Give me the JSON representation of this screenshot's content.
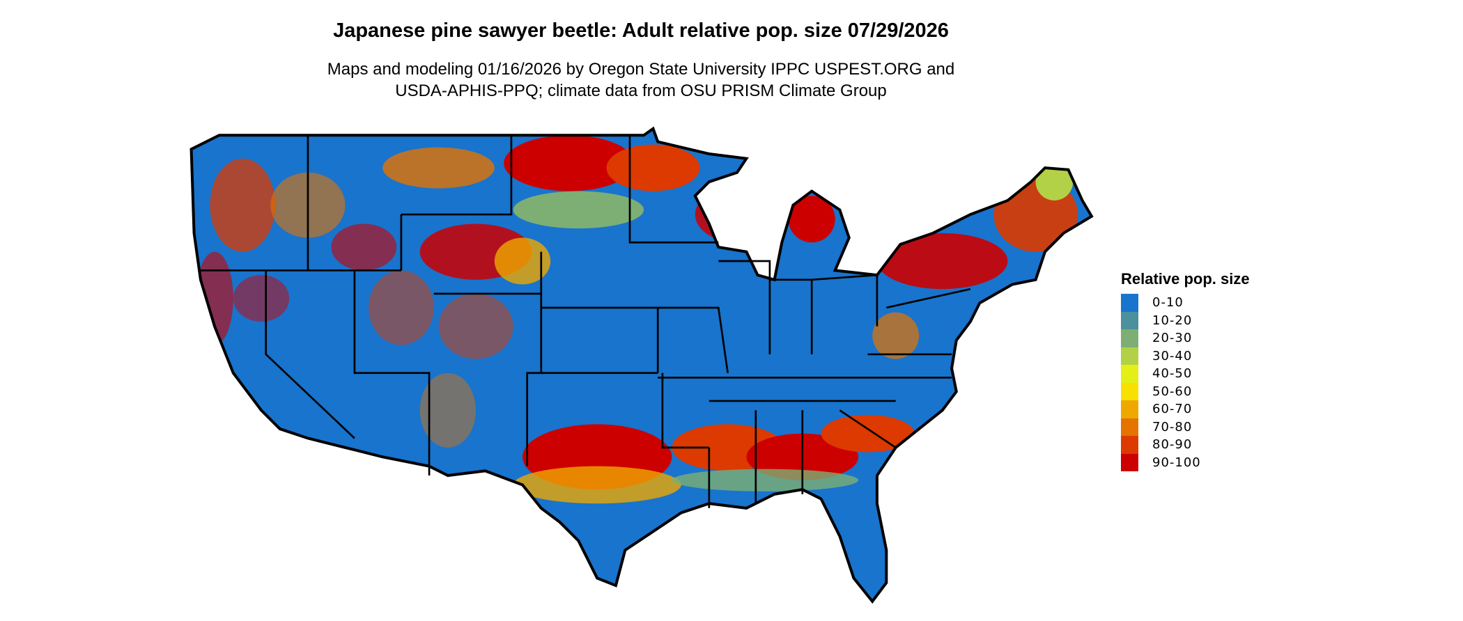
{
  "title": "Japanese pine sawyer beetle: Adult relative pop. size 07/29/2026",
  "subtitle_lines": [
    "Maps and modeling 01/16/2026 by Oregon State University IPPC USPEST.ORG and",
    "USDA-APHIS-PPQ; climate data from OSU PRISM Climate Group"
  ],
  "map": {
    "region": "Contiguous United States",
    "variable": "Adult relative population size",
    "background_color": "#1874cd",
    "high_zones_description_visible": false
  },
  "legend": {
    "title": "Relative pop. size",
    "items": [
      {
        "label": "0-10",
        "color": "#1874cd"
      },
      {
        "label": "10-20",
        "color": "#4a909d"
      },
      {
        "label": "20-30",
        "color": "#7daf74"
      },
      {
        "label": "30-40",
        "color": "#b2d146"
      },
      {
        "label": "40-50",
        "color": "#e3ef17"
      },
      {
        "label": "50-60",
        "color": "#f8e000"
      },
      {
        "label": "60-70",
        "color": "#efa800"
      },
      {
        "label": "70-80",
        "color": "#e57300"
      },
      {
        "label": "80-90",
        "color": "#dc3a00"
      },
      {
        "label": "90-100",
        "color": "#cd0000"
      }
    ]
  }
}
